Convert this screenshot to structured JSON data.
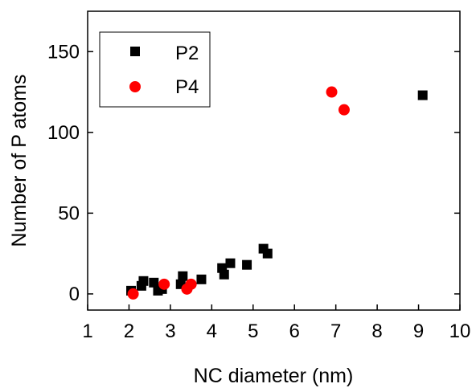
{
  "chart_data": {
    "type": "scatter",
    "xlabel": "NC diameter (nm)",
    "ylabel": "Number of P atoms",
    "xlim": [
      1,
      10
    ],
    "ylim": [
      -10,
      175
    ],
    "xticks": [
      1,
      2,
      3,
      4,
      5,
      6,
      7,
      8,
      9,
      10
    ],
    "yticks": [
      0,
      50,
      100,
      150
    ],
    "grid": false,
    "legend_position": "top-left",
    "series": [
      {
        "name": "P2",
        "marker": "square",
        "color": "#000000",
        "points": [
          {
            "x": 2.05,
            "y": 2
          },
          {
            "x": 2.3,
            "y": 5
          },
          {
            "x": 2.35,
            "y": 8
          },
          {
            "x": 2.6,
            "y": 7
          },
          {
            "x": 2.7,
            "y": 2
          },
          {
            "x": 2.8,
            "y": 3
          },
          {
            "x": 3.25,
            "y": 6
          },
          {
            "x": 3.3,
            "y": 11
          },
          {
            "x": 3.75,
            "y": 9
          },
          {
            "x": 4.25,
            "y": 16
          },
          {
            "x": 4.3,
            "y": 12
          },
          {
            "x": 4.45,
            "y": 19
          },
          {
            "x": 4.85,
            "y": 18
          },
          {
            "x": 5.25,
            "y": 28
          },
          {
            "x": 5.35,
            "y": 25
          },
          {
            "x": 9.1,
            "y": 123
          }
        ]
      },
      {
        "name": "P4",
        "marker": "circle",
        "color": "#ff0000",
        "points": [
          {
            "x": 2.1,
            "y": 0
          },
          {
            "x": 2.85,
            "y": 6
          },
          {
            "x": 3.4,
            "y": 3
          },
          {
            "x": 3.5,
            "y": 6
          },
          {
            "x": 6.9,
            "y": 125
          },
          {
            "x": 7.2,
            "y": 114
          }
        ]
      }
    ]
  }
}
